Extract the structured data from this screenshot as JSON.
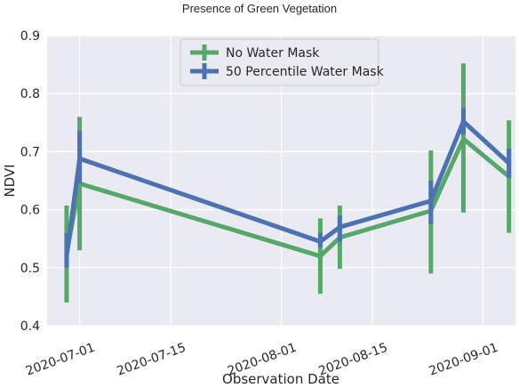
{
  "chart_data": {
    "type": "line",
    "title": "Presence of Green Vegetation",
    "xlabel": "Observation Date",
    "ylabel": "NDVI",
    "ylim": [
      0.4,
      0.9
    ],
    "x_range": [
      "2020-06-26",
      "2020-09-06"
    ],
    "yticks": [
      "0.4",
      "0.5",
      "0.6",
      "0.7",
      "0.8",
      "0.9"
    ],
    "xticks": [
      "2020-07-01",
      "2020-07-15",
      "2020-08-01",
      "2020-08-15",
      "2020-09-01"
    ],
    "x": [
      "2020-06-29",
      "2020-07-01",
      "2020-08-07",
      "2020-08-10",
      "2020-08-24",
      "2020-08-29",
      "2020-09-05"
    ],
    "series": [
      {
        "name": "No Water Mask",
        "color": "#55a868",
        "values": [
          0.525,
          0.645,
          0.52,
          0.552,
          0.598,
          0.722,
          0.657
        ],
        "err_low": [
          0.44,
          0.53,
          0.455,
          0.498,
          0.49,
          0.595,
          0.56
        ],
        "err_high": [
          0.607,
          0.76,
          0.585,
          0.607,
          0.702,
          0.852,
          0.754
        ]
      },
      {
        "name": "50 Percentile Water Mask",
        "color": "#4c72b0",
        "values": [
          0.52,
          0.688,
          0.545,
          0.57,
          0.615,
          0.752,
          0.68
        ],
        "err_low": [
          0.5,
          0.645,
          0.535,
          0.545,
          0.575,
          0.73,
          0.655
        ],
        "err_high": [
          0.56,
          0.735,
          0.56,
          0.59,
          0.65,
          0.775,
          0.705
        ]
      }
    ],
    "grid": true,
    "legend": "top-center"
  }
}
